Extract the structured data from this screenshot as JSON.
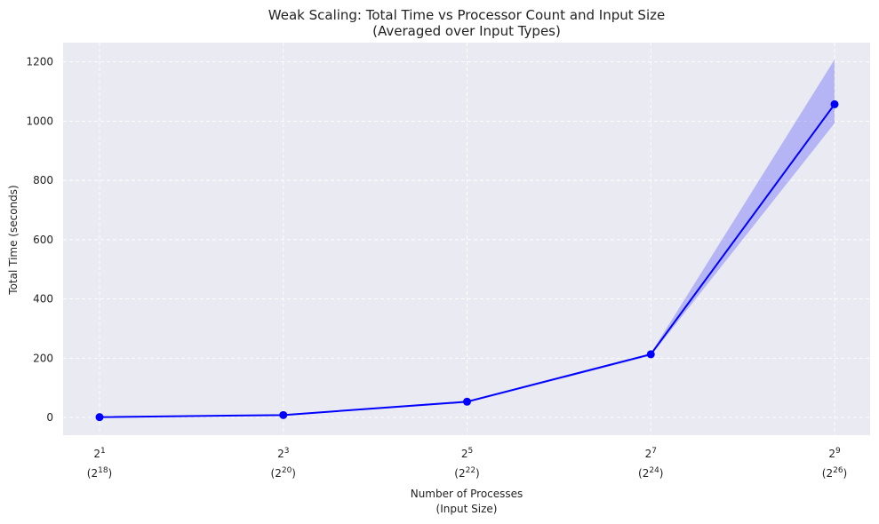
{
  "chart_data": {
    "type": "line",
    "title_line1": "Weak Scaling: Total Time vs Processor Count and Input Size",
    "title_line2": "(Averaged over Input Types)",
    "xlabel_line1": "Number of Processes",
    "xlabel_line2": "(Input Size)",
    "ylabel": "Total Time (seconds)",
    "x_ticks": [
      {
        "proc_base": "2",
        "proc_exp": "1",
        "input_base": "2",
        "input_exp": "18"
      },
      {
        "proc_base": "2",
        "proc_exp": "3",
        "input_base": "2",
        "input_exp": "20"
      },
      {
        "proc_base": "2",
        "proc_exp": "5",
        "input_base": "2",
        "input_exp": "22"
      },
      {
        "proc_base": "2",
        "proc_exp": "7",
        "input_base": "2",
        "input_exp": "24"
      },
      {
        "proc_base": "2",
        "proc_exp": "9",
        "input_base": "2",
        "input_exp": "26"
      }
    ],
    "x": [
      2,
      8,
      32,
      128,
      512
    ],
    "xscale": "log2",
    "y_ticks": [
      0,
      200,
      400,
      600,
      800,
      1000,
      1200
    ],
    "ylim": [
      -60,
      1265
    ],
    "series": [
      {
        "values": [
          1,
          8,
          53,
          213,
          1057
        ],
        "lower": [
          0,
          6,
          49,
          208,
          993
        ],
        "upper": [
          2,
          10,
          56,
          216,
          1208
        ],
        "color": "#0000ff",
        "band_color": "#3a3aff"
      }
    ],
    "grid": true,
    "background": "#eaeaf2"
  }
}
